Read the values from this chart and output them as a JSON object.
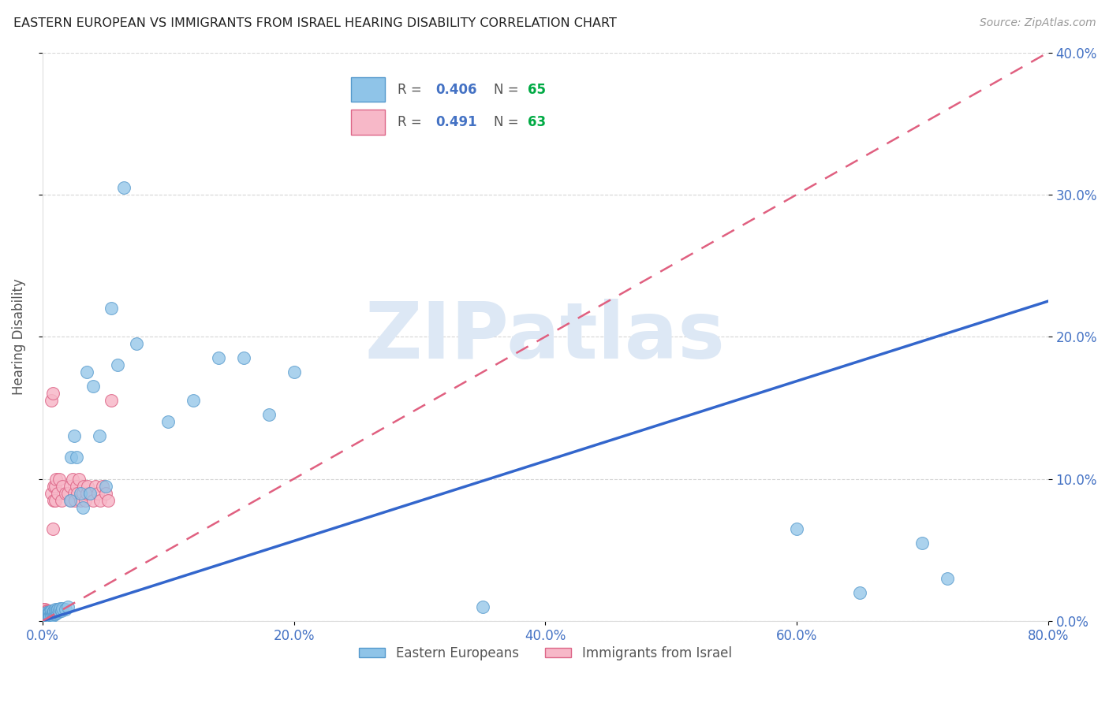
{
  "title": "EASTERN EUROPEAN VS IMMIGRANTS FROM ISRAEL HEARING DISABILITY CORRELATION CHART",
  "source": "Source: ZipAtlas.com",
  "ylabel": "Hearing Disability",
  "xlim": [
    0.0,
    0.8
  ],
  "ylim": [
    0.0,
    0.4
  ],
  "xticks": [
    0.0,
    0.2,
    0.4,
    0.6,
    0.8
  ],
  "yticks": [
    0.0,
    0.1,
    0.2,
    0.3,
    0.4
  ],
  "xtick_labels": [
    "0.0%",
    "20.0%",
    "40.0%",
    "60.0%",
    "80.0%"
  ],
  "ytick_labels": [
    "0.0%",
    "10.0%",
    "20.0%",
    "30.0%",
    "40.0%"
  ],
  "series1_label": "Eastern Europeans",
  "series1_color": "#8fc4e8",
  "series1_edge": "#5599cc",
  "series2_label": "Immigrants from Israel",
  "series2_color": "#f7b8c8",
  "series2_edge": "#dd6688",
  "background_color": "#ffffff",
  "grid_color": "#cccccc",
  "title_color": "#222222",
  "axis_color": "#4472c4",
  "watermark": "ZIPatlas",
  "watermark_color": "#dde8f5",
  "line1_color": "#3366cc",
  "line2_color": "#e06080",
  "series1_x": [
    0.001,
    0.001,
    0.002,
    0.002,
    0.002,
    0.003,
    0.003,
    0.003,
    0.003,
    0.004,
    0.004,
    0.004,
    0.005,
    0.005,
    0.005,
    0.005,
    0.006,
    0.006,
    0.006,
    0.007,
    0.007,
    0.007,
    0.008,
    0.008,
    0.008,
    0.009,
    0.009,
    0.01,
    0.01,
    0.011,
    0.011,
    0.012,
    0.012,
    0.013,
    0.014,
    0.015,
    0.016,
    0.018,
    0.02,
    0.022,
    0.023,
    0.025,
    0.027,
    0.03,
    0.032,
    0.035,
    0.038,
    0.04,
    0.045,
    0.05,
    0.055,
    0.06,
    0.065,
    0.075,
    0.1,
    0.12,
    0.14,
    0.16,
    0.18,
    0.2,
    0.35,
    0.6,
    0.65,
    0.7,
    0.72
  ],
  "series1_y": [
    0.002,
    0.004,
    0.003,
    0.005,
    0.002,
    0.003,
    0.004,
    0.006,
    0.002,
    0.003,
    0.005,
    0.004,
    0.003,
    0.005,
    0.006,
    0.003,
    0.004,
    0.006,
    0.003,
    0.005,
    0.004,
    0.007,
    0.004,
    0.006,
    0.005,
    0.006,
    0.007,
    0.005,
    0.008,
    0.006,
    0.007,
    0.006,
    0.008,
    0.007,
    0.009,
    0.007,
    0.009,
    0.008,
    0.01,
    0.085,
    0.115,
    0.13,
    0.115,
    0.09,
    0.08,
    0.175,
    0.09,
    0.165,
    0.13,
    0.095,
    0.22,
    0.18,
    0.305,
    0.195,
    0.14,
    0.155,
    0.185,
    0.185,
    0.145,
    0.175,
    0.01,
    0.065,
    0.02,
    0.055,
    0.03
  ],
  "series2_x": [
    0.001,
    0.001,
    0.001,
    0.001,
    0.001,
    0.002,
    0.002,
    0.002,
    0.002,
    0.002,
    0.003,
    0.003,
    0.003,
    0.003,
    0.003,
    0.004,
    0.004,
    0.004,
    0.004,
    0.005,
    0.005,
    0.005,
    0.006,
    0.006,
    0.006,
    0.007,
    0.007,
    0.008,
    0.008,
    0.009,
    0.009,
    0.01,
    0.01,
    0.011,
    0.012,
    0.013,
    0.015,
    0.016,
    0.018,
    0.02,
    0.022,
    0.023,
    0.024,
    0.025,
    0.026,
    0.027,
    0.028,
    0.029,
    0.03,
    0.032,
    0.033,
    0.034,
    0.035,
    0.036,
    0.038,
    0.04,
    0.042,
    0.044,
    0.046,
    0.048,
    0.05,
    0.052,
    0.055
  ],
  "series2_y": [
    0.003,
    0.007,
    0.005,
    0.002,
    0.008,
    0.004,
    0.006,
    0.003,
    0.008,
    0.005,
    0.003,
    0.007,
    0.004,
    0.006,
    0.003,
    0.005,
    0.007,
    0.004,
    0.006,
    0.003,
    0.007,
    0.005,
    0.004,
    0.007,
    0.005,
    0.155,
    0.09,
    0.16,
    0.065,
    0.085,
    0.095,
    0.085,
    0.095,
    0.1,
    0.09,
    0.1,
    0.085,
    0.095,
    0.09,
    0.09,
    0.095,
    0.085,
    0.1,
    0.09,
    0.085,
    0.095,
    0.09,
    0.1,
    0.085,
    0.09,
    0.095,
    0.085,
    0.09,
    0.095,
    0.09,
    0.085,
    0.095,
    0.09,
    0.085,
    0.095,
    0.09,
    0.085,
    0.155
  ],
  "line1_x0": 0.0,
  "line1_y0": 0.0,
  "line1_x1": 0.8,
  "line1_y1": 0.225,
  "line2_x0": 0.0,
  "line2_y0": 0.0,
  "line2_x1": 0.8,
  "line2_y1": 0.4
}
